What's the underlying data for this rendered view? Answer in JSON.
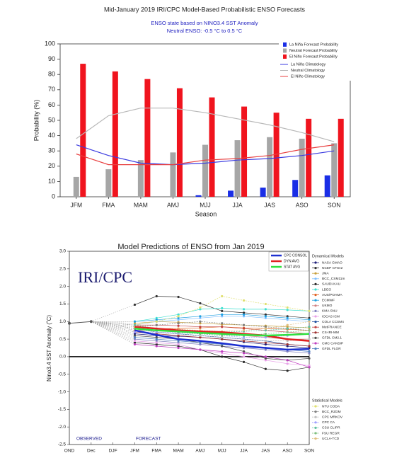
{
  "chart_data": [
    {
      "type": "bar",
      "title": "Mid-January 2019 IRI/CPC Model-Based Probabilistic ENSO Forecasts",
      "subtitle": [
        "ENSO state based on NINO3.4 SST Anomaly",
        "Neutral ENSO: -0.5 °C to 0.5 °C"
      ],
      "xlabel": "Season",
      "ylabel": "Probability (%)",
      "categories": [
        "JFM",
        "FMA",
        "MAM",
        "AMJ",
        "MJJ",
        "JJA",
        "JAS",
        "ASO",
        "SON"
      ],
      "ylim": [
        0,
        100
      ],
      "yticks": [
        0,
        10,
        20,
        30,
        40,
        50,
        60,
        70,
        80,
        90,
        100
      ],
      "legend": "top-right",
      "series": [
        {
          "name": "La Niña Forecast Probability",
          "color": "#1a2ee6",
          "values": [
            0,
            0,
            0,
            0,
            1,
            4,
            6,
            11,
            14
          ]
        },
        {
          "name": "Neutral Forecast Probability",
          "color": "#a6a6a6",
          "values": [
            13,
            18,
            24,
            29,
            34,
            37,
            39,
            38,
            35
          ]
        },
        {
          "name": "El Niño Forecast Probability",
          "color": "#f0141e",
          "values": [
            87,
            82,
            77,
            71,
            65,
            59,
            55,
            51,
            51
          ]
        }
      ],
      "lines": [
        {
          "name": "La Niña Climatology",
          "color": "#3b3be0",
          "values": [
            34,
            27,
            22,
            21,
            22,
            24,
            25,
            27,
            30
          ]
        },
        {
          "name": "Neutral Climatology",
          "color": "#b8b8b8",
          "values": [
            38,
            53,
            58,
            58,
            55,
            51,
            47,
            42,
            36
          ]
        },
        {
          "name": "El Niño Climatology",
          "color": "#e84040",
          "values": [
            28,
            21,
            21,
            21,
            24,
            25,
            27,
            31,
            34
          ]
        }
      ]
    },
    {
      "type": "line",
      "title": "Model Predictions of ENSO from Jan 2019",
      "ylabel": "Nino3.4 SST Anomaly (˚C)",
      "annotations": [
        "IRI/CPC",
        "OBSERVED",
        "FORECAST"
      ],
      "categories": [
        "OND",
        "Dec",
        "DJF",
        "JFM",
        "FMA",
        "MAM",
        "AMJ",
        "MJJ",
        "JJA",
        "JAS",
        "ASO",
        "SON"
      ],
      "ylim": [
        -2.5,
        3.0
      ],
      "yticks": [
        {
          "value": 3.0,
          "label": "3.0"
        },
        2.5,
        {
          "value": 2.0,
          "label": "2.0"
        },
        1.5,
        {
          "value": 1.0,
          "label": "1.0"
        },
        0.5,
        {
          "value": 0,
          "label": "0.0"
        },
        -0.5,
        {
          "value": -1.0,
          "label": "-1.0"
        },
        -1.5,
        {
          "value": -2.0,
          "label": "-2.0"
        },
        -2.5
      ],
      "observed": {
        "color": "#555555",
        "values": [
          0.95,
          1.0,
          null,
          null,
          null,
          null,
          null,
          null,
          null,
          null,
          null,
          null
        ]
      },
      "averages": [
        {
          "name": "CPC CONSOL",
          "color": "#1c2fd0",
          "values": [
            null,
            null,
            null,
            0.75,
            0.62,
            0.5,
            0.45,
            0.38,
            0.3,
            0.25,
            0.2,
            0.22
          ]
        },
        {
          "name": "DYN AVG",
          "color": "#e02020",
          "values": [
            null,
            null,
            null,
            0.85,
            0.8,
            0.75,
            0.72,
            0.7,
            0.65,
            0.6,
            0.5,
            0.45
          ]
        },
        {
          "name": "STAT AVG",
          "color": "#30e040",
          "values": [
            null,
            null,
            null,
            0.8,
            0.75,
            0.72,
            0.68,
            0.65,
            0.62,
            0.6,
            0.62,
            0.65
          ]
        }
      ],
      "dynamical": {
        "title": "Dynamical Models",
        "series": [
          {
            "name": "NASA GMAO",
            "color": "#1f1f7a",
            "values": [
              null,
              null,
              null,
              0.65,
              0.6,
              0.58,
              0.55,
              0.5,
              0.42,
              0.35,
              0.3,
              0.25
            ]
          },
          {
            "name": "NCEP CFSv2",
            "color": "#333333",
            "values": [
              null,
              null,
              null,
              1.48,
              1.72,
              1.7,
              1.52,
              1.3,
              1.25,
              1.2,
              1.15,
              1.1
            ]
          },
          {
            "name": "JMA",
            "color": "#c8a03c",
            "values": [
              null,
              null,
              null,
              0.95,
              1.0,
              0.98,
              0.95,
              0.92,
              0.9,
              0.88,
              0.85,
              0.82
            ]
          },
          {
            "name": "BCC_CSM11m",
            "color": "#7fbfff",
            "values": [
              null,
              null,
              null,
              0.9,
              1.0,
              1.05,
              1.1,
              1.15,
              1.15,
              1.1,
              1.05,
              1.0
            ]
          },
          {
            "name": "SAUDI-KAU",
            "color": "#2a2a2a",
            "values": [
              null,
              null,
              null,
              0.4,
              0.35,
              0.3,
              0.2,
              0.0,
              -0.15,
              -0.35,
              -0.4,
              -0.3
            ]
          },
          {
            "name": "LDEO",
            "color": "#40e0d0",
            "values": [
              null,
              null,
              null,
              1.0,
              1.1,
              1.2,
              1.35,
              1.38,
              1.35,
              1.35,
              1.33,
              1.3
            ]
          },
          {
            "name": "AUS/POAMA",
            "color": "#e06020",
            "values": [
              null,
              null,
              null,
              0.85,
              0.8,
              0.8,
              0.82,
              0.85,
              0.82,
              0.8,
              0.78,
              0.75
            ]
          },
          {
            "name": "ECMWF",
            "color": "#20a0e0",
            "values": [
              null,
              null,
              null,
              1.0,
              1.05,
              1.1,
              1.15,
              1.2,
              1.2,
              1.15,
              1.1,
              1.05
            ]
          },
          {
            "name": "UKMO",
            "color": "#d08080",
            "values": [
              null,
              null,
              null,
              0.75,
              0.75,
              0.7,
              0.7,
              0.65,
              0.6,
              0.55,
              0.5,
              0.5
            ]
          },
          {
            "name": "KMA SNU",
            "color": "#8080c0",
            "values": [
              null,
              null,
              null,
              0.5,
              0.45,
              0.4,
              0.35,
              0.3,
              0.25,
              0.2,
              0.15,
              0.1
            ]
          },
          {
            "name": "IOCAS ICM",
            "color": "#e8a0e8",
            "values": [
              null,
              null,
              null,
              0.45,
              0.4,
              0.35,
              0.2,
              0.1,
              0.0,
              -0.1,
              -0.2,
              -0.25
            ]
          },
          {
            "name": "COLA CCSM4",
            "color": "#2050a0",
            "values": [
              null,
              null,
              null,
              0.8,
              0.7,
              0.65,
              0.6,
              0.55,
              0.5,
              0.45,
              0.35,
              0.3
            ]
          },
          {
            "name": "MetFRANCE",
            "color": "#c04040",
            "values": [
              null,
              null,
              null,
              0.9,
              0.9,
              0.88,
              0.85,
              0.85,
              0.8,
              0.75,
              0.7,
              0.65
            ]
          },
          {
            "name": "CS-IRI-MM",
            "color": "#a03030",
            "values": [
              null,
              null,
              null,
              0.7,
              0.65,
              0.6,
              0.55,
              0.5,
              0.45,
              0.4,
              0.35,
              0.3
            ]
          },
          {
            "name": "GFDL CM2.1",
            "color": "#505050",
            "values": [
              null,
              null,
              null,
              0.6,
              0.55,
              0.5,
              0.4,
              0.3,
              0.15,
              -0.05,
              -0.1,
              -0.05
            ]
          },
          {
            "name": "CMC CANSIP",
            "color": "#c040c0",
            "values": [
              null,
              null,
              null,
              0.35,
              0.3,
              0.25,
              0.2,
              0.15,
              0.1,
              0.0,
              -0.1,
              -0.3
            ]
          },
          {
            "name": "GFDL FLOR",
            "color": "#5080c0",
            "values": [
              null,
              null,
              null,
              0.55,
              0.5,
              0.45,
              0.4,
              0.35,
              0.3,
              0.25,
              0.2,
              0.15
            ]
          }
        ]
      },
      "statistical": {
        "title": "Statistical Models",
        "series": [
          {
            "name": "NTU CODA",
            "color": "#e0e070",
            "values": [
              null,
              null,
              null,
              0.9,
              1.0,
              1.15,
              1.4,
              1.72,
              1.6,
              1.5,
              1.4,
              1.3
            ]
          },
          {
            "name": "BCC_RZDM",
            "color": "#808080",
            "values": [
              null,
              null,
              null,
              0.85,
              0.9,
              0.95,
              1.0,
              0.95,
              0.9,
              0.85,
              0.8,
              0.75
            ]
          },
          {
            "name": "CPC MRKOV",
            "color": "#c0c0c0",
            "values": [
              null,
              null,
              null,
              0.8,
              0.7,
              0.65,
              0.6,
              0.55,
              0.5,
              0.45,
              0.45,
              0.5
            ]
          },
          {
            "name": "CPC CA",
            "color": "#a0a0ff",
            "values": [
              null,
              null,
              null,
              0.7,
              0.7,
              0.68,
              0.65,
              0.6,
              0.55,
              0.55,
              0.6,
              0.65
            ]
          },
          {
            "name": "CSU CLIPR",
            "color": "#60c0a0",
            "values": [
              null,
              null,
              null,
              0.9,
              0.8,
              0.75,
              0.7,
              0.7,
              0.72,
              0.75,
              0.8,
              0.85
            ]
          },
          {
            "name": "FSU REGR",
            "color": "#80c080",
            "values": [
              null,
              null,
              null,
              0.8,
              0.75,
              0.7,
              0.65,
              0.6,
              0.6,
              0.65,
              0.7,
              0.75
            ]
          },
          {
            "name": "UCLA-TCD",
            "color": "#e0c080",
            "values": [
              null,
              null,
              null,
              0.85,
              0.8,
              0.78,
              0.75,
              0.72,
              0.75,
              0.8,
              0.9,
              1.0
            ]
          }
        ]
      }
    }
  ]
}
